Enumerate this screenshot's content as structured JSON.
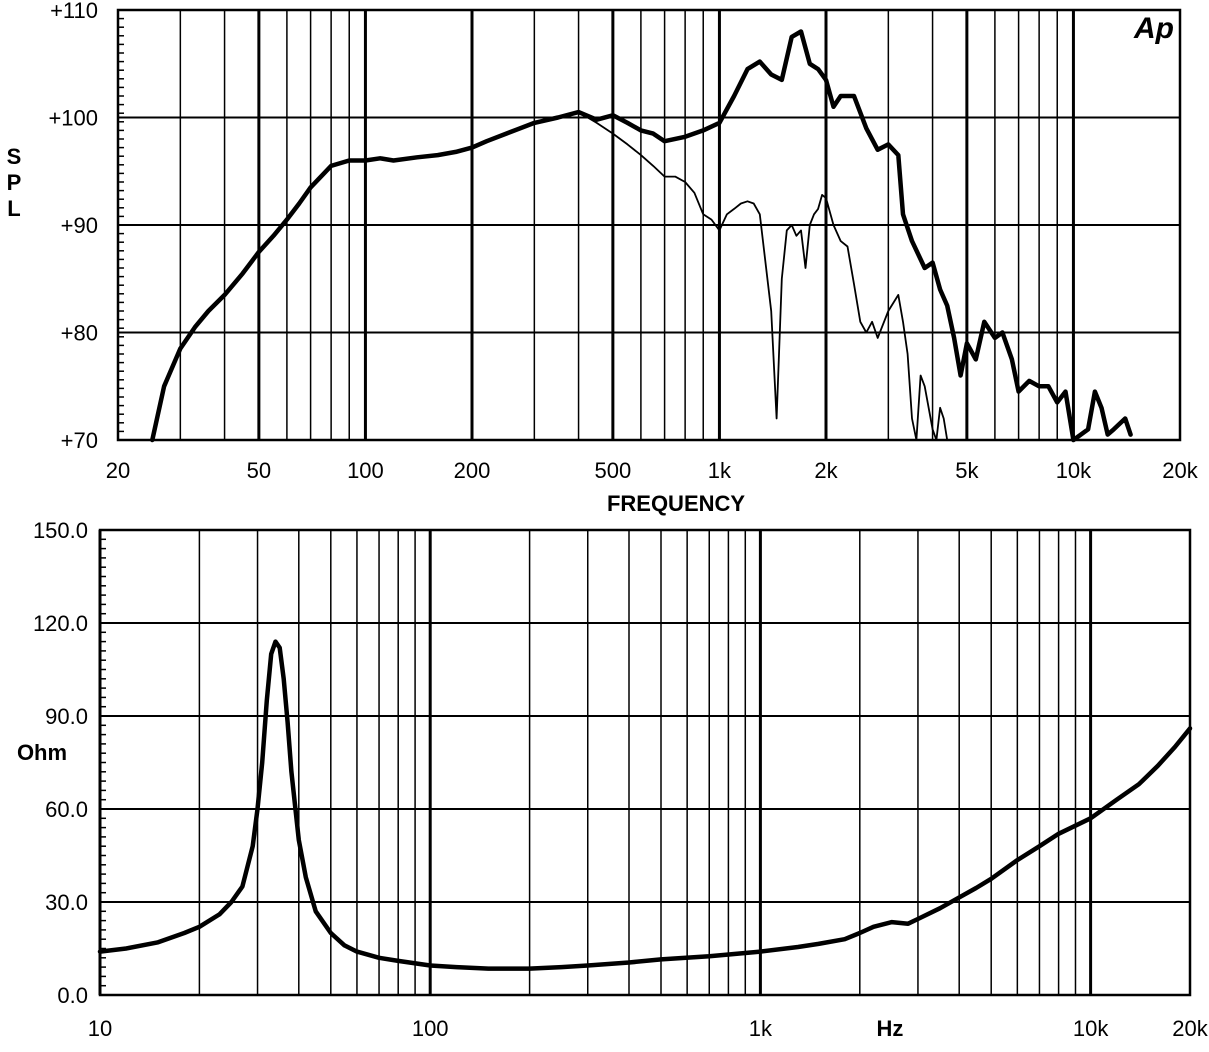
{
  "chart_data": [
    {
      "type": "line",
      "title": "",
      "xlabel": "FREQUENCY",
      "ylabel": "SPL",
      "x_scale": "log",
      "xlim": [
        20,
        20000
      ],
      "ylim": [
        70,
        110
      ],
      "grid": true,
      "logo": "Ap",
      "x_tick_labels": [
        {
          "value": 20,
          "label": "20"
        },
        {
          "value": 50,
          "label": "50"
        },
        {
          "value": 100,
          "label": "100"
        },
        {
          "value": 200,
          "label": "200"
        },
        {
          "value": 500,
          "label": "500"
        },
        {
          "value": 1000,
          "label": "1k"
        },
        {
          "value": 2000,
          "label": "2k"
        },
        {
          "value": 5000,
          "label": "5k"
        },
        {
          "value": 10000,
          "label": "10k"
        },
        {
          "value": 20000,
          "label": "20k"
        }
      ],
      "y_tick_labels": [
        {
          "value": 70,
          "label": "+70"
        },
        {
          "value": 80,
          "label": "+80"
        },
        {
          "value": 90,
          "label": "+90"
        },
        {
          "value": 100,
          "label": "+100"
        },
        {
          "value": 110,
          "label": "+110"
        }
      ],
      "series": [
        {
          "style": "thick",
          "x": [
            25,
            27,
            30,
            33,
            36,
            40,
            45,
            50,
            55,
            60,
            65,
            70,
            80,
            90,
            100,
            110,
            120,
            140,
            160,
            180,
            200,
            220,
            250,
            300,
            350,
            400,
            450,
            500,
            550,
            600,
            650,
            700,
            800,
            900,
            1000,
            1100,
            1200,
            1300,
            1400,
            1500,
            1600,
            1700,
            1800,
            1900,
            2000,
            2100,
            2200,
            2400,
            2600,
            2800,
            3000,
            3200,
            3300,
            3500,
            3800,
            4000,
            4200,
            4400,
            4600,
            4800,
            5000,
            5300,
            5600,
            6000,
            6300,
            6700,
            7000,
            7500,
            8000,
            8500,
            9000,
            9500,
            10000,
            10500,
            11000,
            11500,
            12000,
            12500,
            13000,
            14000,
            14500
          ],
          "y": [
            70,
            75,
            78.5,
            80.5,
            82,
            83.5,
            85.5,
            87.5,
            89,
            90.5,
            92,
            93.5,
            95.5,
            96,
            96,
            96.2,
            96,
            96.3,
            96.5,
            96.8,
            97.2,
            97.8,
            98.5,
            99.5,
            100,
            100.5,
            99.8,
            100.2,
            99.5,
            98.8,
            98.5,
            97.8,
            98.2,
            98.8,
            99.5,
            102,
            104.5,
            105.2,
            104,
            103.5,
            107.5,
            108,
            105,
            104.5,
            103.5,
            101,
            102,
            102,
            99,
            97,
            97.5,
            96.5,
            91,
            88.5,
            86,
            86.5,
            84,
            82.5,
            79.5,
            76,
            79,
            77.5,
            81,
            79.5,
            80,
            77.5,
            74.5,
            75.5,
            75,
            75,
            73.5,
            74.5,
            70,
            70.5,
            71,
            74.5,
            73,
            70.5,
            71,
            72,
            70.5
          ]
        },
        {
          "style": "thin",
          "x": [
            400,
            450,
            500,
            550,
            600,
            650,
            700,
            750,
            800,
            850,
            900,
            950,
            1000,
            1050,
            1100,
            1150,
            1200,
            1250,
            1300,
            1400,
            1450,
            1500,
            1550,
            1600,
            1650,
            1700,
            1750,
            1800,
            1850,
            1900,
            1950,
            2000,
            2100,
            2200,
            2300,
            2400,
            2500,
            2600,
            2700,
            2800,
            3000,
            3200,
            3300,
            3400,
            3500,
            3600,
            3700,
            3800,
            4000,
            4100,
            4200,
            4300,
            4400
          ],
          "y": [
            100.5,
            99.5,
            98.5,
            97.5,
            96.5,
            95.5,
            94.5,
            94.5,
            94,
            93,
            91,
            90.5,
            89.5,
            91,
            91.5,
            92,
            92.2,
            92,
            91,
            82,
            72,
            85,
            89.5,
            90,
            89,
            89.5,
            86,
            90,
            91,
            91.5,
            92.8,
            92.5,
            90,
            88.5,
            88,
            84.5,
            81,
            80,
            81,
            79.5,
            82,
            83.5,
            81,
            78,
            72,
            70,
            76,
            75,
            71,
            70,
            73,
            72,
            70
          ]
        }
      ]
    },
    {
      "type": "line",
      "title": "",
      "xlabel": "Hz",
      "ylabel": "Ohm",
      "x_scale": "log",
      "xlim": [
        10,
        20000
      ],
      "ylim": [
        0,
        150
      ],
      "grid": true,
      "x_tick_labels": [
        {
          "value": 10,
          "label": "10"
        },
        {
          "value": 100,
          "label": "100"
        },
        {
          "value": 1000,
          "label": "1k"
        },
        {
          "value": 10000,
          "label": "10k"
        },
        {
          "value": 20000,
          "label": "20k"
        }
      ],
      "y_tick_labels": [
        {
          "value": 0,
          "label": "0.0"
        },
        {
          "value": 30,
          "label": "30.0"
        },
        {
          "value": 60,
          "label": "60.0"
        },
        {
          "value": 90,
          "label": "90.0"
        },
        {
          "value": 120,
          "label": "120.0"
        },
        {
          "value": 150,
          "label": "150.0"
        }
      ],
      "series": [
        {
          "style": "thick",
          "x": [
            10,
            12,
            15,
            18,
            20,
            23,
            25,
            27,
            29,
            30,
            31,
            32,
            33,
            34,
            35,
            36,
            37,
            38,
            40,
            42,
            45,
            50,
            55,
            60,
            70,
            80,
            100,
            120,
            150,
            200,
            250,
            300,
            400,
            500,
            700,
            1000,
            1300,
            1500,
            1800,
            2000,
            2200,
            2500,
            2800,
            3000,
            3500,
            4000,
            4500,
            5000,
            6000,
            7000,
            8000,
            10000,
            12000,
            14000,
            16000,
            18000,
            20000
          ],
          "y": [
            14,
            15,
            17,
            20,
            22,
            26,
            30,
            35,
            48,
            60,
            75,
            95,
            110,
            114,
            112,
            102,
            88,
            72,
            50,
            38,
            27,
            20,
            16,
            14,
            12,
            11,
            9.5,
            9,
            8.5,
            8.5,
            9,
            9.5,
            10.5,
            11.5,
            12.5,
            14,
            15.5,
            16.5,
            18,
            20,
            22,
            23.5,
            23,
            24.5,
            28,
            31.5,
            34.5,
            37.5,
            43.5,
            48,
            52,
            57,
            63,
            68,
            74,
            80,
            86
          ]
        }
      ]
    }
  ]
}
